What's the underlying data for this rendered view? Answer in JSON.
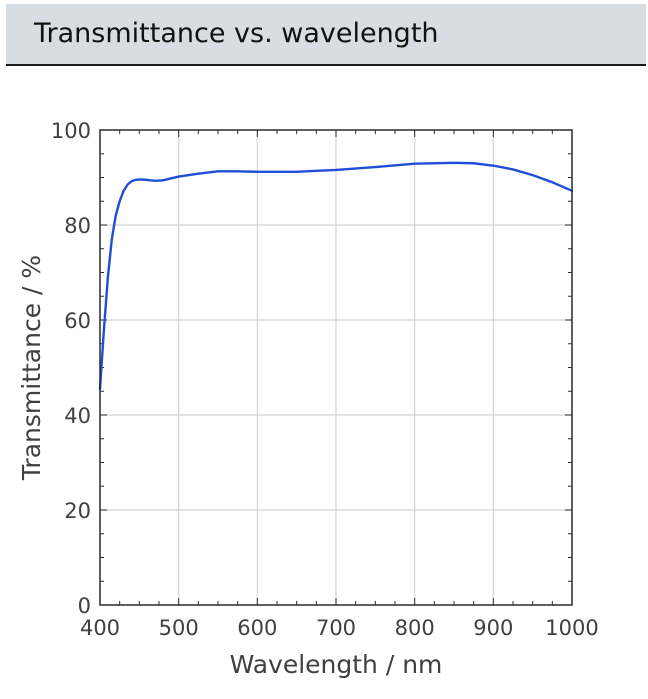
{
  "header": {
    "title": "Transmittance vs. wavelength"
  },
  "chart_data": {
    "type": "line",
    "title": "",
    "xlabel": "Wavelength / nm",
    "ylabel": "Transmittance / %",
    "xlim": [
      400,
      1000
    ],
    "ylim": [
      0,
      100
    ],
    "xticks": [
      400,
      500,
      600,
      700,
      800,
      900,
      1000
    ],
    "yticks": [
      0,
      20,
      40,
      60,
      80,
      100
    ],
    "grid": true,
    "line_color": "#1f4fd6",
    "series": [
      {
        "x": [
          400,
          405,
          410,
          415,
          420,
          425,
          430,
          435,
          440,
          445,
          450,
          460,
          470,
          480,
          490,
          500,
          525,
          550,
          575,
          600,
          625,
          650,
          675,
          700,
          750,
          800,
          850,
          875,
          900,
          925,
          950,
          975,
          1000
        ],
        "y": [
          45.5,
          58,
          69,
          77,
          82,
          85,
          87.2,
          88.5,
          89.2,
          89.5,
          89.6,
          89.5,
          89.3,
          89.4,
          89.8,
          90.2,
          90.8,
          91.3,
          91.3,
          91.2,
          91.2,
          91.2,
          91.4,
          91.6,
          92.2,
          92.9,
          93.1,
          93.0,
          92.5,
          91.7,
          90.5,
          89.0,
          87.2
        ]
      }
    ]
  }
}
